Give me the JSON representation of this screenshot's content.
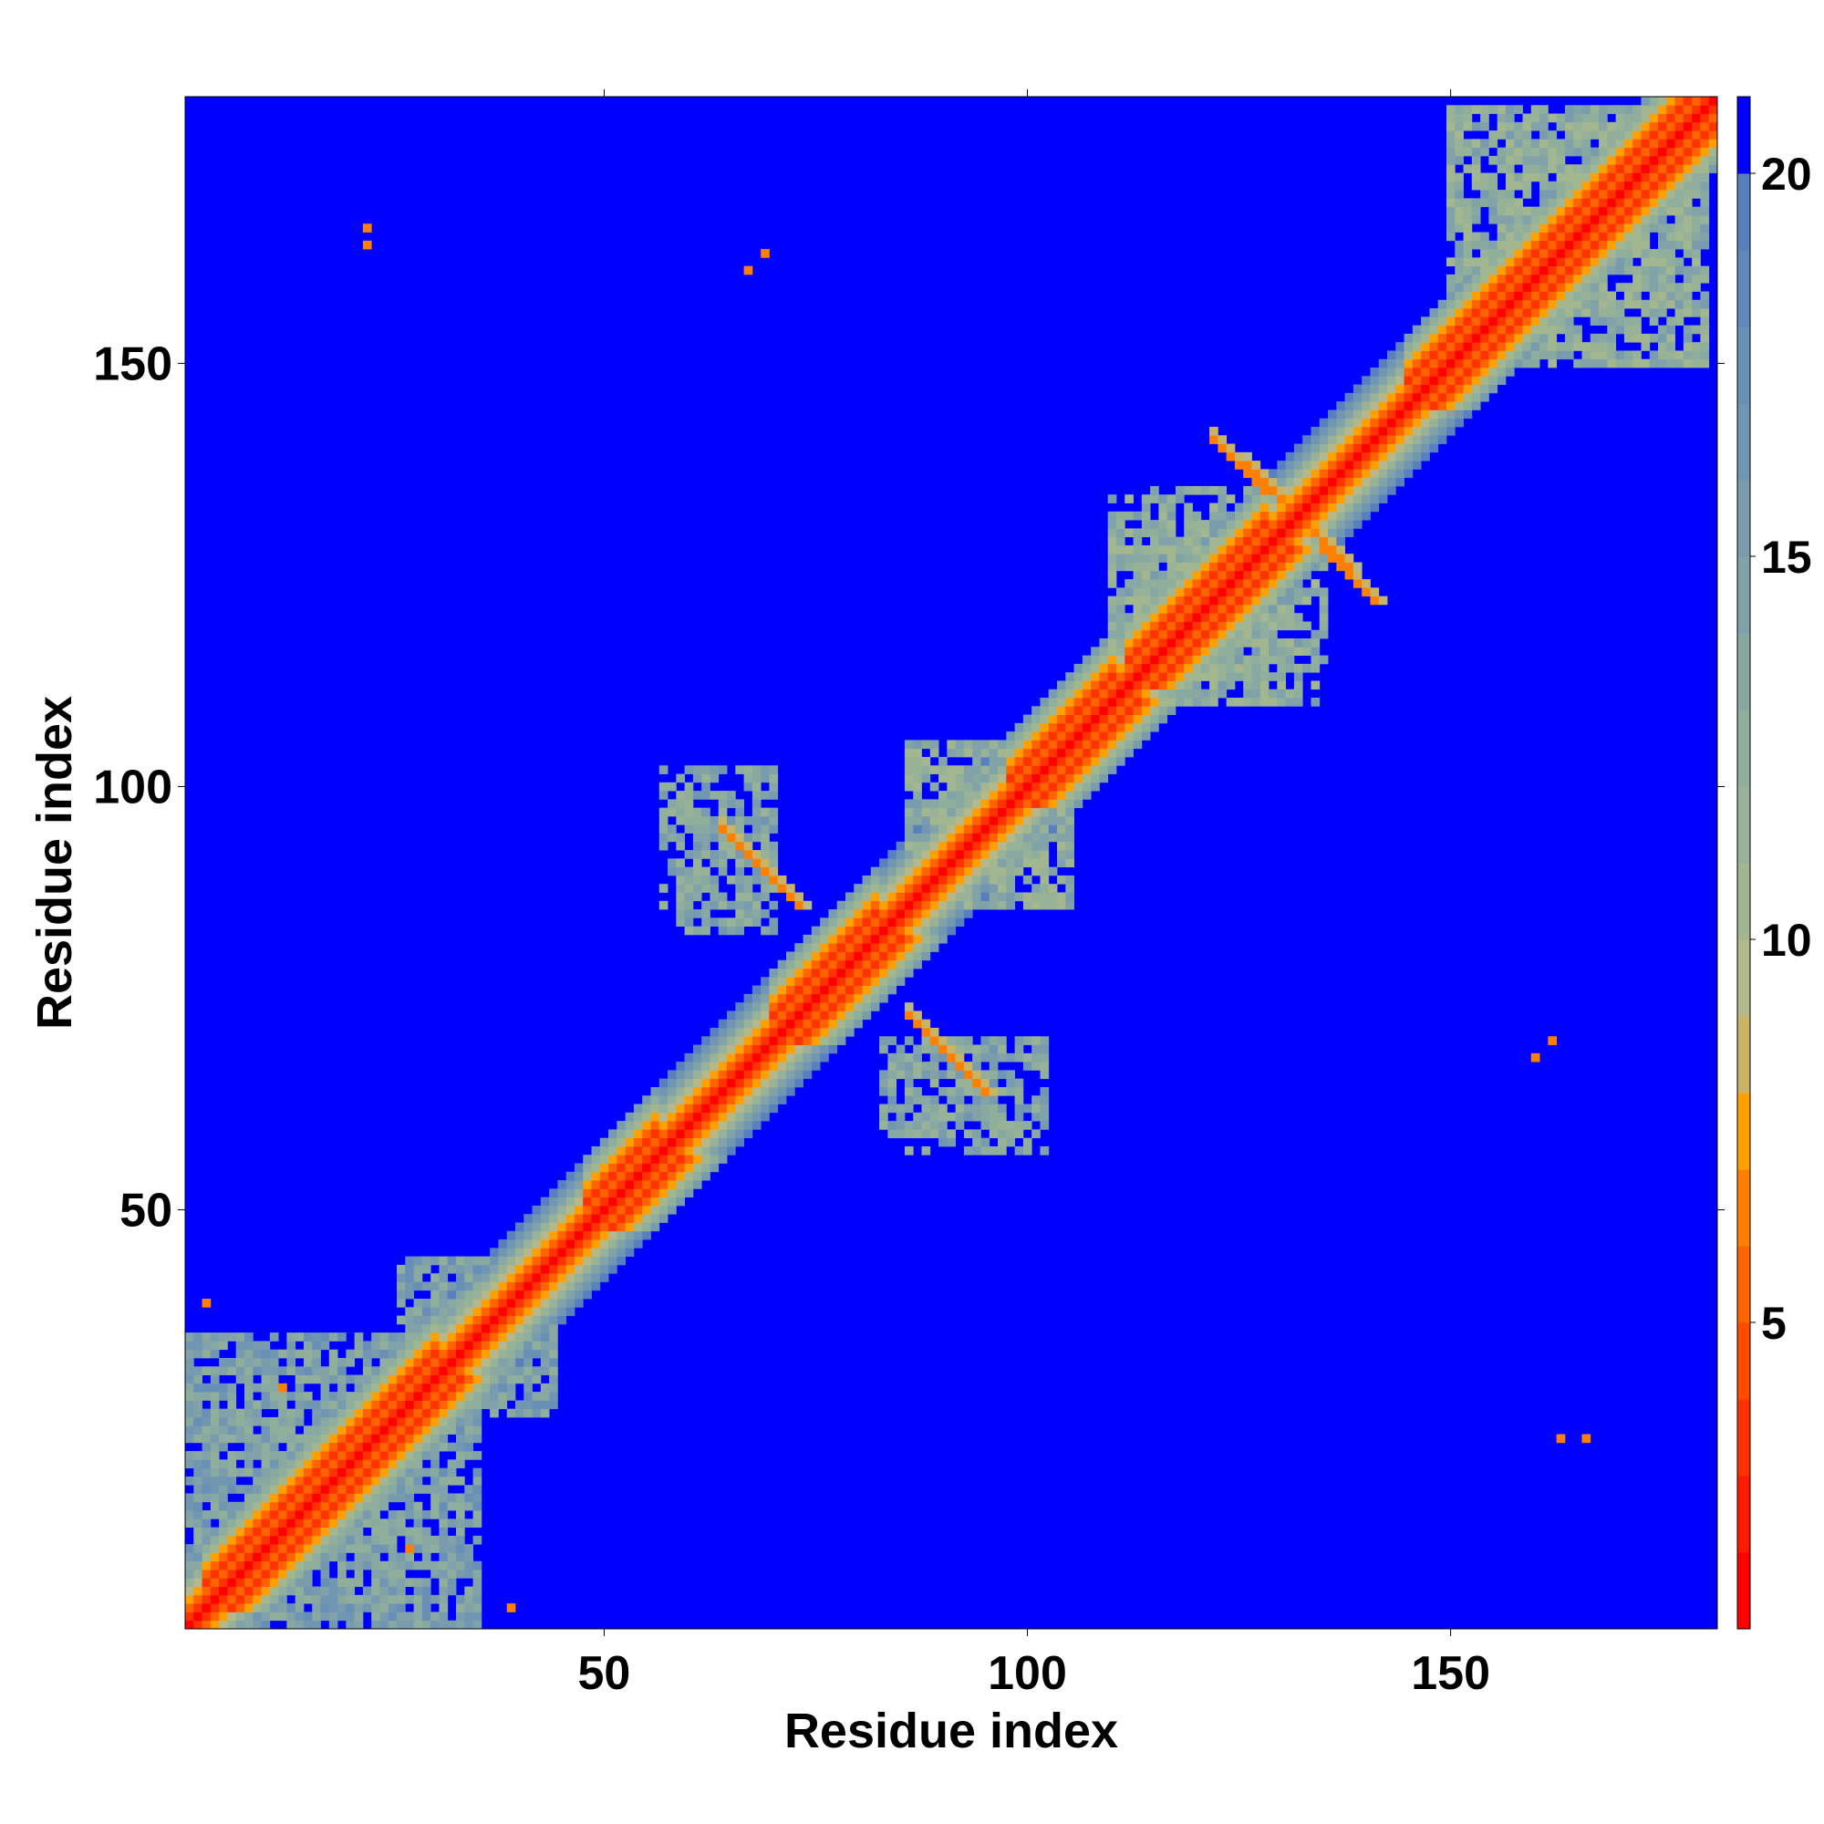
{
  "chart_data": {
    "type": "heatmap",
    "title": "",
    "xlabel": "Residue index",
    "ylabel": "Residue index",
    "n_residues": 181,
    "xlim": [
      1,
      181
    ],
    "ylim": [
      1,
      181
    ],
    "x_ticks": [
      50,
      100,
      150
    ],
    "y_ticks": [
      50,
      100,
      150
    ],
    "x_tick_labels": [
      "50",
      "100",
      "150"
    ],
    "y_tick_labels": [
      "50",
      "100",
      "150"
    ],
    "colorbar": {
      "range": [
        1,
        21
      ],
      "ticks": [
        5,
        10,
        15,
        20
      ],
      "tick_labels": [
        "5",
        "10",
        "15",
        "20"
      ],
      "levels": [
        {
          "max": 2,
          "color": "#ff0000"
        },
        {
          "max": 3,
          "color": "#ff1a00"
        },
        {
          "max": 4,
          "color": "#ff3300"
        },
        {
          "max": 5,
          "color": "#ff4a00"
        },
        {
          "max": 6,
          "color": "#ff6400"
        },
        {
          "max": 7,
          "color": "#ff8000"
        },
        {
          "max": 8,
          "color": "#ffa000"
        },
        {
          "max": 9,
          "color": "#c8b464"
        },
        {
          "max": 10,
          "color": "#b4b88a"
        },
        {
          "max": 11,
          "color": "#a2b690"
        },
        {
          "max": 12,
          "color": "#98b298"
        },
        {
          "max": 13,
          "color": "#90ae9c"
        },
        {
          "max": 14,
          "color": "#88a8a2"
        },
        {
          "max": 15,
          "color": "#80a2a8"
        },
        {
          "max": 16,
          "color": "#789cae"
        },
        {
          "max": 17,
          "color": "#7096b2"
        },
        {
          "max": 18,
          "color": "#6890b6"
        },
        {
          "max": 19,
          "color": "#6088ba"
        },
        {
          "max": 20,
          "color": "#5880be"
        },
        {
          "max": 21,
          "color": "#0000ff"
        }
      ]
    },
    "background_value": 21,
    "diagonal_profile": [
      [
        0,
        1.5
      ],
      [
        1,
        3.5
      ],
      [
        2,
        6
      ],
      [
        3,
        7.5
      ],
      [
        4,
        9.5
      ],
      [
        5,
        12
      ],
      [
        6,
        14.5
      ],
      [
        7,
        17
      ],
      [
        8,
        19.5
      ]
    ],
    "helix_segments": [
      [
        3,
        30
      ],
      [
        48,
        56
      ],
      [
        70,
        82
      ],
      [
        98,
        110
      ],
      [
        112,
        128
      ],
      [
        145,
        181
      ]
    ],
    "contact_ridges": [
      {
        "i_range": [
          64,
          73
        ],
        "j_start": 95,
        "j_step": -1,
        "value": 7
      },
      {
        "i_range": [
          122,
          128
        ],
        "j_start": 141,
        "j_step": -1,
        "value": 7
      },
      {
        "i_range": [
          132,
          138
        ],
        "j_start": 132,
        "j_step": -1,
        "value": 7
      }
    ],
    "contact_patches": [
      {
        "i": [
          57,
          70
        ],
        "j": [
          83,
          102
        ],
        "value": 14
      },
      {
        "i": [
          84,
          97
        ],
        "j": [
          59,
          70
        ],
        "value": 14
      },
      {
        "i": [
          86,
          105
        ],
        "j": [
          86,
          105
        ],
        "value": 13
      },
      {
        "i": [
          110,
          135
        ],
        "j": [
          110,
          132
        ],
        "value": 13
      },
      {
        "i": [
          1,
          35
        ],
        "j": [
          1,
          35
        ],
        "value": 15
      },
      {
        "i": [
          26,
          44
        ],
        "j": [
          26,
          44
        ],
        "value": 15
      },
      {
        "i": [
          150,
          180
        ],
        "j": [
          150,
          180
        ],
        "value": 13
      }
    ],
    "contact_points": [
      {
        "i": 22,
        "j": 164,
        "value": 7
      },
      {
        "i": 22,
        "j": 166,
        "value": 7
      },
      {
        "i": 69,
        "j": 163,
        "value": 7
      },
      {
        "i": 67,
        "j": 161,
        "value": 7
      },
      {
        "i": 162,
        "j": 70,
        "value": 7
      },
      {
        "i": 160,
        "j": 68,
        "value": 7
      },
      {
        "i": 163,
        "j": 23,
        "value": 7
      },
      {
        "i": 166,
        "j": 23,
        "value": 7
      },
      {
        "i": 3,
        "j": 39,
        "value": 7
      },
      {
        "i": 39,
        "j": 3,
        "value": 7
      },
      {
        "i": 27,
        "j": 10,
        "value": 7
      },
      {
        "i": 12,
        "j": 29,
        "value": 7
      }
    ]
  }
}
